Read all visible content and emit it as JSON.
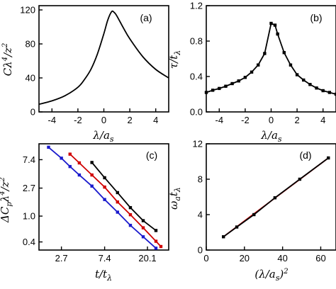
{
  "chart_data": [
    {
      "type": "line",
      "panel_label": "(a)",
      "xlabel": "λ/a_s",
      "ylabel": "Cλ⁴/z²",
      "xlim": [
        -5,
        5
      ],
      "ylim": [
        0,
        125
      ],
      "xticks": [
        -4,
        -2,
        0,
        2,
        4
      ],
      "yticks": [
        0,
        40,
        80,
        120
      ],
      "series": [
        {
          "color": "#000000",
          "marker": "none",
          "x": [
            -5,
            -4,
            -3,
            -2,
            -1.5,
            -1,
            -0.5,
            0,
            0.3,
            0.6,
            0.8,
            1,
            1.5,
            2,
            3,
            4,
            5
          ],
          "y": [
            9,
            13,
            19,
            29,
            38,
            50,
            68,
            92,
            108,
            118,
            117,
            113,
            99,
            86,
            65,
            50,
            40
          ]
        }
      ]
    },
    {
      "type": "line",
      "panel_label": "(b)",
      "xlabel": "λ/a_s",
      "ylabel": "τ/t_λ",
      "xlim": [
        -5,
        5
      ],
      "ylim": [
        0,
        1.2
      ],
      "xticks": [
        -4,
        -2,
        0,
        2,
        4
      ],
      "yticks": [
        0.0,
        0.4,
        0.8,
        1.2
      ],
      "series": [
        {
          "color": "#000000",
          "marker": "square",
          "x": [
            -5,
            -4.5,
            -4,
            -3.5,
            -3,
            -2.5,
            -2,
            -1.5,
            -1,
            -0.5,
            0,
            0.3,
            0.5,
            1,
            1.5,
            2,
            2.5,
            3,
            3.5,
            4,
            4.5,
            5
          ],
          "y": [
            0.22,
            0.245,
            0.265,
            0.29,
            0.32,
            0.35,
            0.39,
            0.45,
            0.53,
            0.66,
            1.0,
            0.98,
            0.88,
            0.67,
            0.53,
            0.42,
            0.36,
            0.31,
            0.27,
            0.24,
            0.22,
            0.2
          ]
        }
      ]
    },
    {
      "type": "line",
      "panel_label": "(c)",
      "xlabel": "t/t_λ",
      "ylabel": "ΔC_pλ⁴/z²",
      "x_scale": "log",
      "y_scale": "log",
      "xlim": [
        1.6,
        33
      ],
      "ylim": [
        0.3,
        13
      ],
      "xticks": [
        2.7,
        7.4,
        20.1
      ],
      "yticks": [
        0.4,
        1.0,
        2.7,
        7.4
      ],
      "series": [
        {
          "color": "#000000",
          "marker": "square",
          "x": [
            5.5,
            7.4,
            10,
            13.5,
            18.2,
            24.5
          ],
          "y": [
            6.7,
            3.9,
            2.3,
            1.35,
            0.85,
            0.6
          ]
        },
        {
          "color": "#d00000",
          "marker": "square",
          "x": [
            3.3,
            4.1,
            5.5,
            7.4,
            10,
            13.5,
            18.2,
            24.5,
            27.5
          ],
          "y": [
            9.0,
            6.6,
            4.3,
            2.8,
            1.65,
            1.05,
            0.66,
            0.41,
            0.34
          ]
        },
        {
          "color": "#1a1acd",
          "marker": "square",
          "x": [
            2.0,
            2.7,
            3.3,
            4.1,
            5.5,
            7.4,
            10,
            13.5,
            18.2,
            24.5
          ],
          "y": [
            11.5,
            7.8,
            5.8,
            4.3,
            2.9,
            1.8,
            1.15,
            0.72,
            0.48,
            0.32
          ]
        }
      ]
    },
    {
      "type": "line",
      "panel_label": "(d)",
      "xlabel": "(λ/a_s)²",
      "ylabel": "ω_a t_λ",
      "xlim": [
        0,
        68
      ],
      "ylim": [
        0,
        12
      ],
      "xticks": [
        0,
        20,
        40,
        60
      ],
      "yticks": [
        0,
        4,
        8,
        12
      ],
      "series": [
        {
          "color": "#d00000",
          "marker": "none",
          "x": [
            9,
            64
          ],
          "y": [
            1.5,
            10.4
          ]
        },
        {
          "color": "#000000",
          "marker": "square",
          "x": [
            9,
            16,
            25,
            36,
            49,
            64
          ],
          "y": [
            1.5,
            2.6,
            4.0,
            5.9,
            8.0,
            10.4
          ]
        }
      ]
    }
  ]
}
